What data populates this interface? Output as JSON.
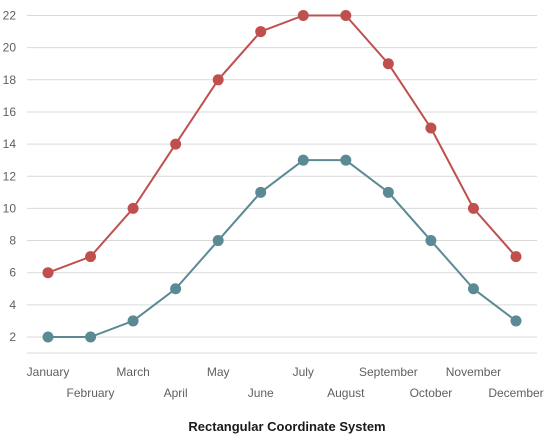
{
  "chart_data": {
    "type": "line",
    "title": "Rectangular Coordinate System",
    "categories": [
      "January",
      "February",
      "March",
      "April",
      "May",
      "June",
      "July",
      "August",
      "September",
      "October",
      "November",
      "December"
    ],
    "series": [
      {
        "color": "#c0504d",
        "values": [
          6,
          7,
          10,
          14,
          18,
          21,
          22,
          22,
          19,
          15,
          10,
          7
        ]
      },
      {
        "color": "#5b8a94",
        "values": [
          2,
          2,
          3,
          5,
          8,
          11,
          13,
          13,
          11,
          8,
          5,
          3
        ]
      }
    ],
    "y_ticks": [
      2,
      4,
      6,
      8,
      10,
      12,
      14,
      16,
      18,
      20,
      22
    ],
    "ylim": [
      0.5,
      23
    ],
    "grid": true,
    "legend": "none",
    "colors": {
      "grid": "#d9d9d9",
      "axis_text": "#5f5f5f"
    }
  }
}
